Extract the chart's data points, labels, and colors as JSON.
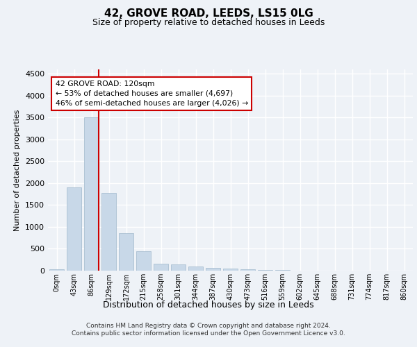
{
  "title1": "42, GROVE ROAD, LEEDS, LS15 0LG",
  "title2": "Size of property relative to detached houses in Leeds",
  "xlabel": "Distribution of detached houses by size in Leeds",
  "ylabel": "Number of detached properties",
  "bar_color": "#c8d8e8",
  "bar_edge_color": "#a0b8cc",
  "categories": [
    "0sqm",
    "43sqm",
    "86sqm",
    "129sqm",
    "172sqm",
    "215sqm",
    "258sqm",
    "301sqm",
    "344sqm",
    "387sqm",
    "430sqm",
    "473sqm",
    "516sqm",
    "559sqm",
    "602sqm",
    "645sqm",
    "688sqm",
    "731sqm",
    "774sqm",
    "817sqm",
    "860sqm"
  ],
  "values": [
    30,
    1900,
    3500,
    1780,
    850,
    450,
    160,
    150,
    100,
    70,
    50,
    35,
    20,
    10,
    5,
    3,
    2,
    1,
    1,
    0,
    0
  ],
  "ylim": [
    0,
    4600
  ],
  "yticks": [
    0,
    500,
    1000,
    1500,
    2000,
    2500,
    3000,
    3500,
    4000,
    4500
  ],
  "property_line_bar_idx": 2,
  "annotation_text": "42 GROVE ROAD: 120sqm\n← 53% of detached houses are smaller (4,697)\n46% of semi-detached houses are larger (4,026) →",
  "annotation_box_color": "#ffffff",
  "annotation_box_edge": "#cc0000",
  "line_color": "#cc0000",
  "footer1": "Contains HM Land Registry data © Crown copyright and database right 2024.",
  "footer2": "Contains public sector information licensed under the Open Government Licence v3.0.",
  "bg_color": "#eef2f7",
  "plot_bg_color": "#eef2f7",
  "grid_color": "#ffffff"
}
